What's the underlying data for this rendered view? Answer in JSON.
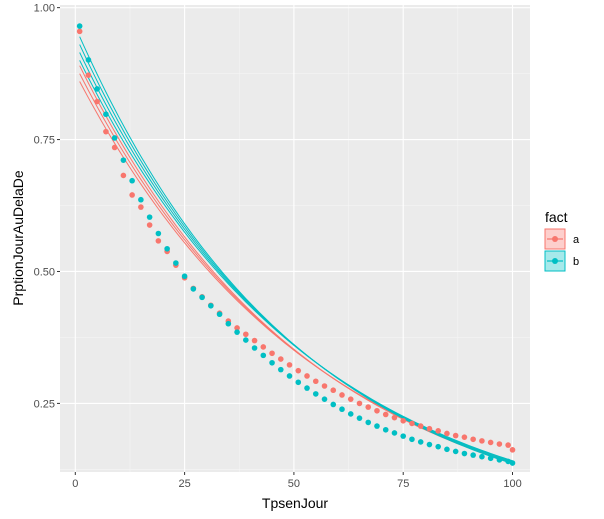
{
  "chart_data": {
    "type": "scatter",
    "title": "",
    "xlabel": "TpsenJour",
    "ylabel": "PrptionJourAuDelaDe",
    "xlim": [
      -3.5,
      104
    ],
    "ylim": [
      0.12,
      1.005
    ],
    "x_ticks": [
      0,
      25,
      50,
      75,
      100
    ],
    "y_ticks": [
      0.25,
      0.5,
      0.75,
      1.0
    ],
    "x_tick_labels": [
      "0",
      "25",
      "50",
      "75",
      "100"
    ],
    "y_tick_labels": [
      "0.25",
      "0.50",
      "0.75",
      "1.00"
    ],
    "grid": true,
    "legend": {
      "title": "fact",
      "position": "right"
    },
    "series": [
      {
        "name": "a",
        "color": "#F8766D",
        "points": [
          [
            1,
            0.955
          ],
          [
            3,
            0.872
          ],
          [
            5,
            0.822
          ],
          [
            7,
            0.765
          ],
          [
            9,
            0.735
          ],
          [
            11,
            0.682
          ],
          [
            13,
            0.645
          ],
          [
            15,
            0.622
          ],
          [
            17,
            0.588
          ],
          [
            19,
            0.558
          ],
          [
            21,
            0.538
          ],
          [
            23,
            0.512
          ],
          [
            25,
            0.488
          ],
          [
            27,
            0.468
          ],
          [
            29,
            0.452
          ],
          [
            31,
            0.436
          ],
          [
            33,
            0.421
          ],
          [
            35,
            0.406
          ],
          [
            37,
            0.393
          ],
          [
            39,
            0.381
          ],
          [
            41,
            0.369
          ],
          [
            43,
            0.357
          ],
          [
            45,
            0.345
          ],
          [
            47,
            0.334
          ],
          [
            49,
            0.323
          ],
          [
            51,
            0.312
          ],
          [
            53,
            0.302
          ],
          [
            55,
            0.292
          ],
          [
            57,
            0.283
          ],
          [
            59,
            0.275
          ],
          [
            61,
            0.266
          ],
          [
            63,
            0.258
          ],
          [
            65,
            0.25
          ],
          [
            67,
            0.243
          ],
          [
            69,
            0.236
          ],
          [
            71,
            0.229
          ],
          [
            73,
            0.223
          ],
          [
            75,
            0.217
          ],
          [
            77,
            0.212
          ],
          [
            79,
            0.207
          ],
          [
            81,
            0.202
          ],
          [
            83,
            0.198
          ],
          [
            85,
            0.193
          ],
          [
            87,
            0.189
          ],
          [
            89,
            0.186
          ],
          [
            91,
            0.182
          ],
          [
            93,
            0.179
          ],
          [
            95,
            0.176
          ],
          [
            97,
            0.173
          ],
          [
            99,
            0.171
          ],
          [
            100,
            0.162
          ]
        ],
        "fit_curves": [
          {
            "base": 0.86,
            "rate": 0.0183
          },
          {
            "base": 0.875,
            "rate": 0.0186
          },
          {
            "base": 0.89,
            "rate": 0.0189
          }
        ]
      },
      {
        "name": "b",
        "color": "#00BFC4",
        "points": [
          [
            1,
            0.965
          ],
          [
            3,
            0.901
          ],
          [
            5,
            0.846
          ],
          [
            7,
            0.798
          ],
          [
            9,
            0.753
          ],
          [
            11,
            0.711
          ],
          [
            13,
            0.672
          ],
          [
            15,
            0.636
          ],
          [
            17,
            0.603
          ],
          [
            19,
            0.572
          ],
          [
            21,
            0.543
          ],
          [
            23,
            0.516
          ],
          [
            25,
            0.491
          ],
          [
            27,
            0.467
          ],
          [
            29,
            0.451
          ],
          [
            31,
            0.435
          ],
          [
            33,
            0.419
          ],
          [
            35,
            0.401
          ],
          [
            37,
            0.385
          ],
          [
            39,
            0.37
          ],
          [
            41,
            0.355
          ],
          [
            43,
            0.341
          ],
          [
            45,
            0.327
          ],
          [
            47,
            0.314
          ],
          [
            49,
            0.302
          ],
          [
            51,
            0.29
          ],
          [
            53,
            0.279
          ],
          [
            55,
            0.268
          ],
          [
            57,
            0.258
          ],
          [
            59,
            0.248
          ],
          [
            61,
            0.239
          ],
          [
            63,
            0.23
          ],
          [
            65,
            0.222
          ],
          [
            67,
            0.214
          ],
          [
            69,
            0.207
          ],
          [
            71,
            0.2
          ],
          [
            73,
            0.194
          ],
          [
            75,
            0.188
          ],
          [
            77,
            0.182
          ],
          [
            79,
            0.177
          ],
          [
            81,
            0.172
          ],
          [
            83,
            0.168
          ],
          [
            85,
            0.163
          ],
          [
            87,
            0.159
          ],
          [
            89,
            0.155
          ],
          [
            91,
            0.152
          ],
          [
            93,
            0.149
          ],
          [
            95,
            0.146
          ],
          [
            97,
            0.143
          ],
          [
            99,
            0.14
          ],
          [
            100,
            0.137
          ]
        ],
        "fit_curves": [
          {
            "base": 0.9,
            "rate": 0.0187
          },
          {
            "base": 0.915,
            "rate": 0.019
          },
          {
            "base": 0.93,
            "rate": 0.0193
          },
          {
            "base": 0.945,
            "rate": 0.0196
          }
        ]
      }
    ]
  }
}
